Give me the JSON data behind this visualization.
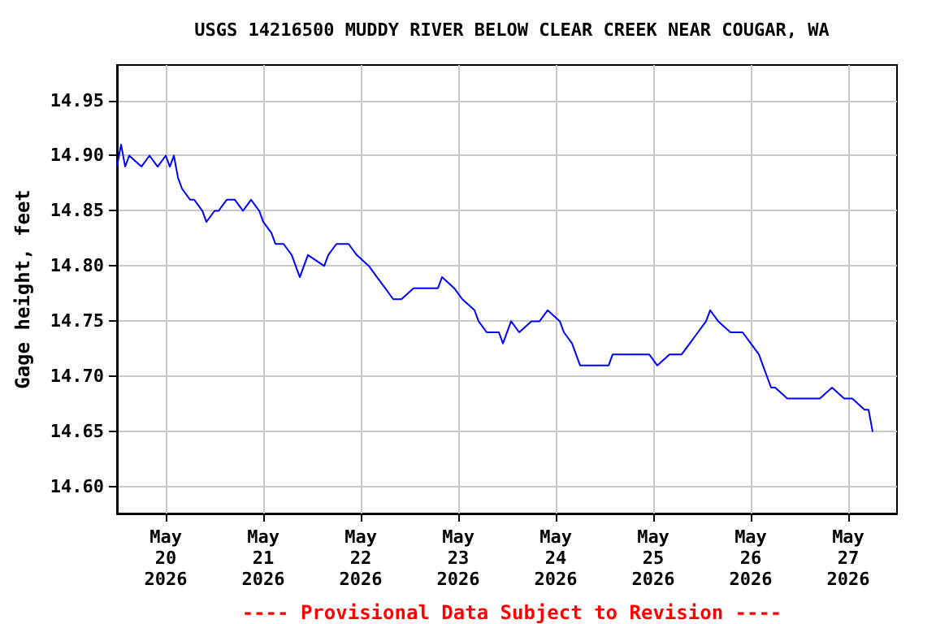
{
  "chart_data": {
    "type": "line",
    "title": "USGS 14216500 MUDDY RIVER BELOW CLEAR CREEK NEAR COUGAR, WA",
    "ylabel": "Gage height, feet",
    "annotations": [
      "---- Provisional Data Subject to Revision ----"
    ],
    "x": [
      "2026-05-19T12:00",
      "2026-05-19T13:00",
      "2026-05-19T14:00",
      "2026-05-19T15:00",
      "2026-05-19T18:00",
      "2026-05-19T20:00",
      "2026-05-19T22:00",
      "2026-05-20T00:00",
      "2026-05-20T01:00",
      "2026-05-20T02:00",
      "2026-05-20T03:00",
      "2026-05-20T04:00",
      "2026-05-20T06:00",
      "2026-05-20T07:00",
      "2026-05-20T09:00",
      "2026-05-20T10:00",
      "2026-05-20T12:00",
      "2026-05-20T13:00",
      "2026-05-20T15:00",
      "2026-05-20T17:00",
      "2026-05-20T19:00",
      "2026-05-20T21:00",
      "2026-05-20T23:00",
      "2026-05-21T00:00",
      "2026-05-21T02:00",
      "2026-05-21T03:00",
      "2026-05-21T05:00",
      "2026-05-21T07:00",
      "2026-05-21T09:00",
      "2026-05-21T10:00",
      "2026-05-21T11:00",
      "2026-05-21T15:00",
      "2026-05-21T16:00",
      "2026-05-21T18:00",
      "2026-05-21T21:00",
      "2026-05-21T23:00",
      "2026-05-22T02:00",
      "2026-05-22T04:00",
      "2026-05-22T06:00",
      "2026-05-22T08:00",
      "2026-05-22T10:00",
      "2026-05-22T13:00",
      "2026-05-22T16:00",
      "2026-05-22T19:00",
      "2026-05-22T20:00",
      "2026-05-22T23:00",
      "2026-05-23T01:00",
      "2026-05-23T04:00",
      "2026-05-23T05:00",
      "2026-05-23T07:00",
      "2026-05-23T10:00",
      "2026-05-23T11:00",
      "2026-05-23T13:00",
      "2026-05-23T15:00",
      "2026-05-23T18:00",
      "2026-05-23T20:00",
      "2026-05-23T22:00",
      "2026-05-24T01:00",
      "2026-05-24T02:00",
      "2026-05-24T04:00",
      "2026-05-24T06:00",
      "2026-05-24T08:00",
      "2026-05-24T10:00",
      "2026-05-24T13:00",
      "2026-05-24T14:00",
      "2026-05-24T16:00",
      "2026-05-24T20:00",
      "2026-05-24T23:00",
      "2026-05-25T01:00",
      "2026-05-25T04:00",
      "2026-05-25T07:00",
      "2026-05-25T09:00",
      "2026-05-25T11:00",
      "2026-05-25T13:00",
      "2026-05-25T14:00",
      "2026-05-25T16:00",
      "2026-05-25T19:00",
      "2026-05-25T22:00",
      "2026-05-26T00:00",
      "2026-05-26T02:00",
      "2026-05-26T03:00",
      "2026-05-26T05:00",
      "2026-05-26T06:00",
      "2026-05-26T09:00",
      "2026-05-26T11:00",
      "2026-05-26T14:00",
      "2026-05-26T17:00",
      "2026-05-26T20:00",
      "2026-05-26T23:00",
      "2026-05-27T01:00",
      "2026-05-27T04:00",
      "2026-05-27T05:00",
      "2026-05-27T06:00"
    ],
    "series": [
      {
        "color": "#0000ff",
        "values": [
          14.89,
          14.91,
          14.89,
          14.9,
          14.89,
          14.9,
          14.89,
          14.9,
          14.89,
          14.9,
          14.88,
          14.87,
          14.86,
          14.86,
          14.85,
          14.84,
          14.85,
          14.85,
          14.86,
          14.86,
          14.85,
          14.86,
          14.85,
          14.84,
          14.83,
          14.82,
          14.82,
          14.81,
          14.79,
          14.8,
          14.81,
          14.8,
          14.81,
          14.82,
          14.82,
          14.81,
          14.8,
          14.79,
          14.78,
          14.77,
          14.77,
          14.78,
          14.78,
          14.78,
          14.79,
          14.78,
          14.77,
          14.76,
          14.75,
          14.74,
          14.74,
          14.73,
          14.75,
          14.74,
          14.75,
          14.75,
          14.76,
          14.75,
          14.74,
          14.73,
          14.71,
          14.71,
          14.71,
          14.71,
          14.72,
          14.72,
          14.72,
          14.72,
          14.71,
          14.72,
          14.72,
          14.73,
          14.74,
          14.75,
          14.76,
          14.75,
          14.74,
          14.74,
          14.73,
          14.72,
          14.71,
          14.69,
          14.69,
          14.68,
          14.68,
          14.68,
          14.68,
          14.69,
          14.68,
          14.68,
          14.67,
          14.67,
          14.65
        ]
      }
    ],
    "xlim": [
      "2026-05-19T12:00",
      "2026-05-27T12:00"
    ],
    "xticks": [
      {
        "value": "2026-05-20",
        "label": "May\n20\n2026"
      },
      {
        "value": "2026-05-21",
        "label": "May\n21\n2026"
      },
      {
        "value": "2026-05-22",
        "label": "May\n22\n2026"
      },
      {
        "value": "2026-05-23",
        "label": "May\n23\n2026"
      },
      {
        "value": "2026-05-24",
        "label": "May\n24\n2026"
      },
      {
        "value": "2026-05-25",
        "label": "May\n25\n2026"
      },
      {
        "value": "2026-05-26",
        "label": "May\n26\n2026"
      },
      {
        "value": "2026-05-27",
        "label": "May\n27\n2026"
      }
    ],
    "ylim": [
      14.576,
      14.982
    ],
    "yticks": [
      {
        "value": 14.6,
        "label": "14.60"
      },
      {
        "value": 14.65,
        "label": "14.65"
      },
      {
        "value": 14.7,
        "label": "14.70"
      },
      {
        "value": 14.75,
        "label": "14.75"
      },
      {
        "value": 14.8,
        "label": "14.80"
      },
      {
        "value": 14.85,
        "label": "14.85"
      },
      {
        "value": 14.9,
        "label": "14.90"
      },
      {
        "value": 14.95,
        "label": "14.95"
      }
    ],
    "grid": true
  }
}
